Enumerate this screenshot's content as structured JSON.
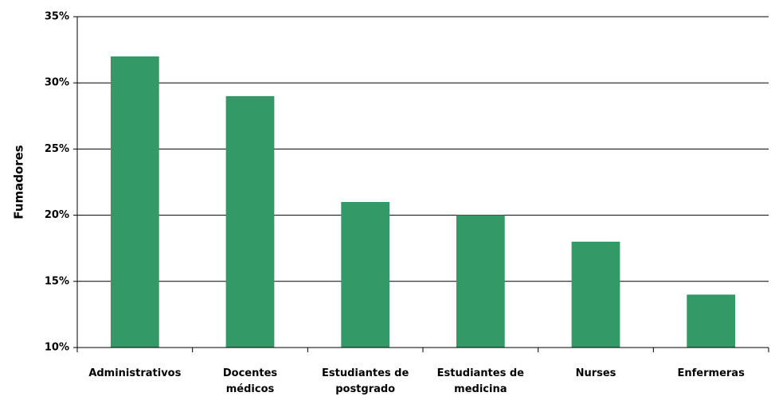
{
  "chart_data": {
    "type": "bar",
    "ylabel": "Fumadores",
    "categories": [
      "Administrativos",
      "Docentes\nmédicos",
      "Estudiantes de\npostgrado",
      "Estudiantes de\nmedicina",
      "Nurses",
      "Enfermeras"
    ],
    "values": [
      32,
      29,
      21,
      20,
      18,
      14
    ],
    "color": "#339966",
    "ylim": [
      10,
      35
    ],
    "yticks": [
      {
        "value": 10,
        "label": "10%"
      },
      {
        "value": 15,
        "label": "15%"
      },
      {
        "value": 20,
        "label": "20%"
      },
      {
        "value": 25,
        "label": "25%"
      },
      {
        "value": 30,
        "label": "30%"
      },
      {
        "value": 35,
        "label": "35%"
      }
    ],
    "grid": true
  }
}
